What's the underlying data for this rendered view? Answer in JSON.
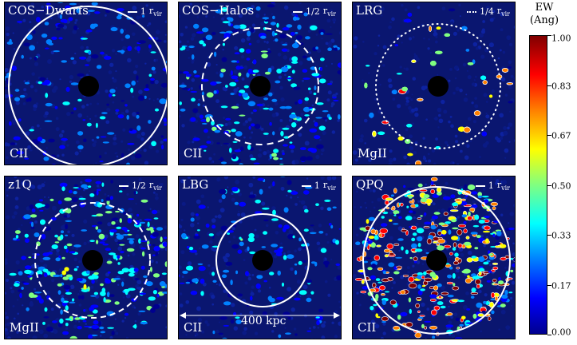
{
  "panels": [
    {
      "title": "COS−Dwarfs",
      "ion": "CII",
      "scale_value": "1",
      "scale_unit": "r",
      "scale_sub": "vir"
    },
    {
      "title": "COS−Halos",
      "ion": "CII",
      "scale_value": "1/2",
      "scale_unit": "r",
      "scale_sub": "vir"
    },
    {
      "title": "LRG",
      "ion": "MgII",
      "scale_value": "1/4",
      "scale_unit": "r",
      "scale_sub": "vir"
    },
    {
      "title": "z1Q",
      "ion": "MgII",
      "scale_value": "1/2",
      "scale_unit": "r",
      "scale_sub": "vir"
    },
    {
      "title": "LBG",
      "ion": "CII",
      "scale_value": "1",
      "scale_unit": "r",
      "scale_sub": "vir"
    },
    {
      "title": "QPQ",
      "ion": "CII",
      "scale_value": "1",
      "scale_unit": "r",
      "scale_sub": "vir"
    }
  ],
  "colorbar": {
    "title_line1": "EW",
    "title_line2": "(Ang)",
    "ticks": [
      "1.00",
      "0.83",
      "0.67",
      "0.50",
      "0.33",
      "0.17",
      "0.00"
    ],
    "colors": [
      "#00008f",
      "#0000ff",
      "#0080ff",
      "#00ffff",
      "#80ff80",
      "#ffff00",
      "#ff8000",
      "#ff0000",
      "#800000"
    ]
  },
  "annotation": {
    "label": "400 kpc"
  }
}
